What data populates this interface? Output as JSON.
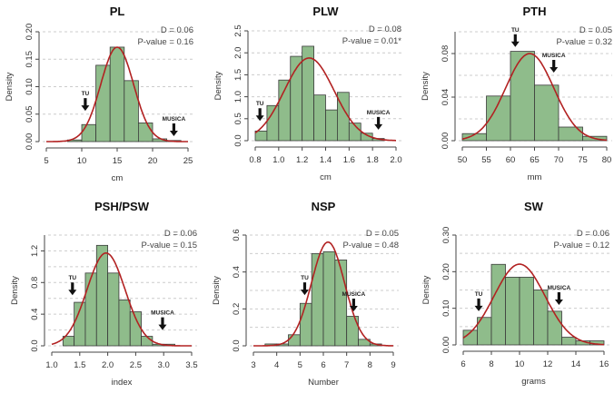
{
  "colors": {
    "bar_fill": "#8fbc8b",
    "bar_stroke": "#3a3a3a",
    "curve": "#b22222",
    "grid": "#cccccc"
  },
  "chart_data": [
    {
      "type": "bar",
      "title": "PL",
      "xlabel": "cm",
      "ylabel": "Density",
      "xlim": [
        5,
        25
      ],
      "ylim": [
        0,
        0.2
      ],
      "xticks": [
        "5",
        "10",
        "15",
        "20",
        "25"
      ],
      "xtick_values": [
        5,
        10,
        15,
        20,
        25
      ],
      "ygrid": [
        0,
        0.05,
        0.1,
        0.15,
        0.2
      ],
      "yticks": [
        "0.00",
        "0.05",
        "0.10",
        "0.15",
        "0.20"
      ],
      "ytick_values": [
        0,
        0.05,
        0.1,
        0.15,
        0.2
      ],
      "bin_start": 8,
      "bin_width": 2,
      "values": [
        0.003,
        0.031,
        0.139,
        0.172,
        0.111,
        0.034,
        0.005,
        0.002
      ],
      "normal": {
        "mean": 15,
        "sd": 2.32
      },
      "stats": [
        "D = 0.06",
        "P-value = 0.16"
      ],
      "annotations": [
        {
          "label": "TU",
          "x": 10.5,
          "y": 0.056
        },
        {
          "label": "MUSICA",
          "x": 23,
          "y": 0.01
        }
      ]
    },
    {
      "type": "bar",
      "title": "PLW",
      "xlabel": "cm",
      "ylabel": "Density",
      "xlim": [
        0.8,
        2.0
      ],
      "ylim": [
        0,
        2.5
      ],
      "xticks": [
        "0.8",
        "1.0",
        "1.2",
        "1.4",
        "1.6",
        "1.8",
        "2.0"
      ],
      "xtick_values": [
        0.8,
        1.0,
        1.2,
        1.4,
        1.6,
        1.8,
        2.0
      ],
      "ygrid": [
        0,
        0.5,
        1,
        1.5,
        2,
        2.5
      ],
      "yticks": [
        "0.0",
        "0.5",
        "1.0",
        "1.5",
        "2.0",
        "2.5"
      ],
      "ytick_values": [
        0,
        0.5,
        1,
        1.5,
        2,
        2.5
      ],
      "bin_start": 0.8,
      "bin_width": 0.1,
      "values": [
        0.22,
        0.8,
        1.38,
        1.92,
        2.15,
        1.04,
        0.7,
        1.1,
        0.4,
        0.17,
        0.05
      ],
      "normal": {
        "mean": 1.26,
        "sd": 0.212
      },
      "stats": [
        "D = 0.08",
        "P-value = 0.01*"
      ],
      "annotations": [
        {
          "label": "TU",
          "x": 0.84,
          "y": 0.45
        },
        {
          "label": "MUSICA",
          "x": 1.85,
          "y": 0.25
        }
      ]
    },
    {
      "type": "bar",
      "title": "PTH",
      "xlabel": "mm",
      "ylabel": "Density",
      "xlim": [
        50,
        80
      ],
      "ylim": [
        0,
        0.1
      ],
      "xticks": [
        "50",
        "55",
        "60",
        "65",
        "70",
        "75",
        "80"
      ],
      "xtick_values": [
        50,
        55,
        60,
        65,
        70,
        75,
        80
      ],
      "ygrid": [
        0,
        0.02,
        0.04,
        0.06,
        0.08,
        0.1
      ],
      "yticks": [
        "0.00",
        "0.04",
        "0.08"
      ],
      "ytick_values": [
        0,
        0.04,
        0.08
      ],
      "bin_start": 50,
      "bin_width": 5,
      "values": [
        0.0065,
        0.041,
        0.082,
        0.051,
        0.0125,
        0.004
      ],
      "normal": {
        "mean": 64,
        "sd": 4.99
      },
      "stats": [
        "D = 0.05",
        "P-value = 0.32"
      ],
      "annotations": [
        {
          "label": "TU",
          "x": 61,
          "y": 0.086
        },
        {
          "label": "MUSICA",
          "x": 69,
          "y": 0.0625
        }
      ]
    },
    {
      "type": "bar",
      "title": "PSH/PSW",
      "xlabel": "index",
      "ylabel": "Density",
      "xlim": [
        1.0,
        3.5
      ],
      "ylim": [
        0,
        1.4
      ],
      "xticks": [
        "1.0",
        "1.5",
        "2.0",
        "2.5",
        "3.0",
        "3.5"
      ],
      "xtick_values": [
        1,
        1.5,
        2,
        2.5,
        3,
        3.5
      ],
      "ygrid": [
        0,
        0.2,
        0.4,
        0.6,
        0.8,
        1.0,
        1.2,
        1.4
      ],
      "yticks": [
        "0.0",
        "0.4",
        "0.8",
        "1.2"
      ],
      "ytick_values": [
        0,
        0.4,
        0.8,
        1.2
      ],
      "bin_start": 1.2,
      "bin_width": 0.2,
      "values": [
        0.12,
        0.55,
        0.92,
        1.27,
        0.92,
        0.58,
        0.43,
        0.12,
        0.02,
        0.02
      ],
      "normal": {
        "mean": 1.97,
        "sd": 0.34
      },
      "stats": [
        "D = 0.06",
        "P-value = 0.15"
      ],
      "annotations": [
        {
          "label": "TU",
          "x": 1.37,
          "y": 0.64
        },
        {
          "label": "MUSICA",
          "x": 2.98,
          "y": 0.2
        }
      ]
    },
    {
      "type": "bar",
      "title": "NSP",
      "xlabel": "Number",
      "ylabel": "Density",
      "xlim": [
        3,
        9
      ],
      "ylim": [
        0,
        0.6
      ],
      "xticks": [
        "3",
        "4",
        "5",
        "6",
        "7",
        "8",
        "9"
      ],
      "xtick_values": [
        3,
        4,
        5,
        6,
        7,
        8,
        9
      ],
      "ygrid": [
        0,
        0.1,
        0.2,
        0.3,
        0.4,
        0.5,
        0.6
      ],
      "yticks": [
        "0.0",
        "0.2",
        "0.4",
        "0.6"
      ],
      "ytick_values": [
        0,
        0.2,
        0.4,
        0.6
      ],
      "bin_start": 3.5,
      "bin_width": 0.5,
      "values": [
        0.01,
        0.01,
        0.06,
        0.23,
        0.5,
        0.51,
        0.465,
        0.16,
        0.035,
        0.01
      ],
      "normal": {
        "mean": 6.2,
        "sd": 0.71
      },
      "stats": [
        "D = 0.05",
        "P-value = 0.48"
      ],
      "annotations": [
        {
          "label": "TU",
          "x": 5.2,
          "y": 0.275
        },
        {
          "label": "MUSICA",
          "x": 7.3,
          "y": 0.187
        }
      ]
    },
    {
      "type": "bar",
      "title": "SW",
      "xlabel": "grams",
      "ylabel": "Density",
      "xlim": [
        6,
        16
      ],
      "ylim": [
        0,
        0.3
      ],
      "xticks": [
        "6",
        "8",
        "10",
        "12",
        "14",
        "16"
      ],
      "xtick_values": [
        6,
        8,
        10,
        12,
        14,
        16
      ],
      "ygrid": [
        0,
        0.05,
        0.1,
        0.15,
        0.2,
        0.25,
        0.3
      ],
      "yticks": [
        "0.00",
        "0.10",
        "0.20",
        "0.30"
      ],
      "ytick_values": [
        0,
        0.1,
        0.2,
        0.3
      ],
      "bin_start": 6,
      "bin_width": 1,
      "values": [
        0.04,
        0.075,
        0.22,
        0.185,
        0.185,
        0.15,
        0.092,
        0.021,
        0.011,
        0.011
      ],
      "normal": {
        "mean": 10,
        "sd": 1.81
      },
      "stats": [
        "D = 0.06",
        "P-value = 0.12"
      ],
      "annotations": [
        {
          "label": "TU",
          "x": 7.1,
          "y": 0.092
        },
        {
          "label": "MUSICA",
          "x": 12.8,
          "y": 0.109
        }
      ]
    }
  ]
}
